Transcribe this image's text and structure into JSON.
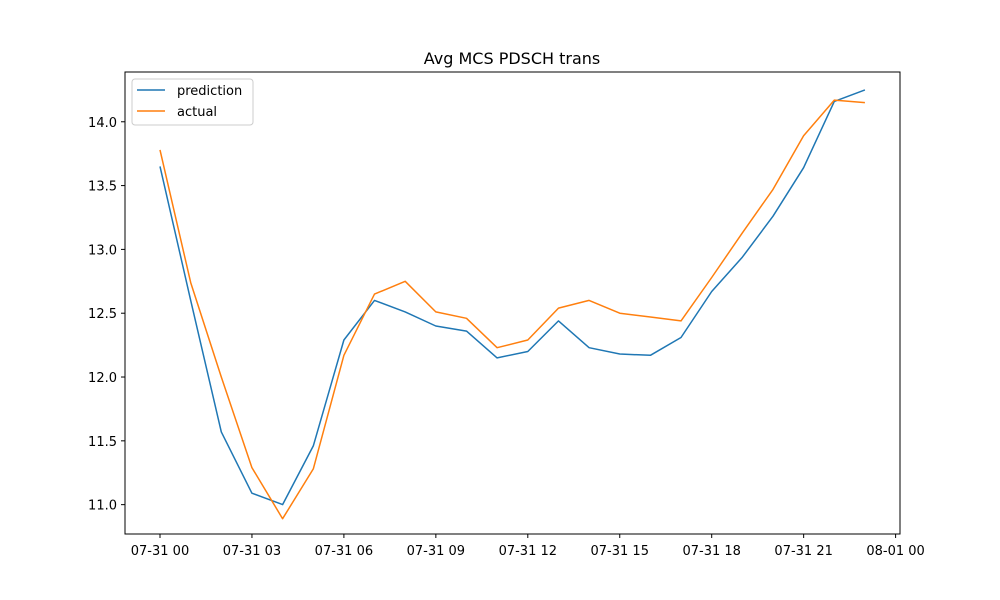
{
  "chart_data": {
    "type": "line",
    "title": "Avg MCS PDSCH trans",
    "xlabel": "",
    "ylabel": "",
    "x": [
      "07-31 00:00",
      "07-31 01:00",
      "07-31 02:00",
      "07-31 03:00",
      "07-31 04:00",
      "07-31 05:00",
      "07-31 06:00",
      "07-31 07:00",
      "07-31 08:00",
      "07-31 09:00",
      "07-31 10:00",
      "07-31 11:00",
      "07-31 12:00",
      "07-31 13:00",
      "07-31 14:00",
      "07-31 15:00",
      "07-31 16:00",
      "07-31 17:00",
      "07-31 18:00",
      "07-31 19:00",
      "07-31 20:00",
      "07-31 21:00",
      "07-31 22:00",
      "07-31 23:00"
    ],
    "series": [
      {
        "name": "prediction",
        "color": "#1f77b4",
        "values": [
          13.65,
          12.6,
          11.57,
          11.09,
          11.0,
          11.46,
          12.29,
          12.6,
          12.51,
          12.4,
          12.36,
          12.15,
          12.2,
          12.44,
          12.23,
          12.18,
          12.17,
          12.31,
          12.67,
          12.94,
          13.26,
          13.64,
          14.16,
          14.25
        ]
      },
      {
        "name": "actual",
        "color": "#ff7f0e",
        "values": [
          13.78,
          12.74,
          12.0,
          11.29,
          10.89,
          11.28,
          12.17,
          12.65,
          12.75,
          12.51,
          12.46,
          12.23,
          12.29,
          12.54,
          12.6,
          12.5,
          12.47,
          12.44,
          12.78,
          13.13,
          13.47,
          13.89,
          14.17,
          14.15
        ]
      }
    ],
    "xticks": [
      "07-31 00",
      "07-31 03",
      "07-31 06",
      "07-31 09",
      "07-31 12",
      "07-31 15",
      "07-31 18",
      "07-31 21",
      "08-01 00"
    ],
    "ylim": [
      10.77,
      14.39
    ],
    "yticks": [
      "11.0",
      "11.5",
      "12.0",
      "12.5",
      "13.0",
      "13.5",
      "14.0"
    ],
    "legend_position": "top-left",
    "grid": false
  }
}
